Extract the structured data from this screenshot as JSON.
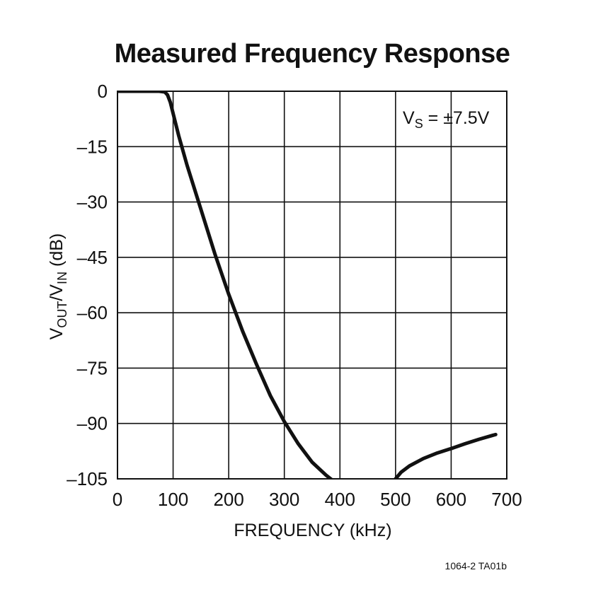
{
  "chart_data": {
    "type": "line",
    "title": "Measured Frequency Response",
    "xlabel": "FREQUENCY (kHz)",
    "ylabel": {
      "main": "V",
      "sub1": "OUT",
      "mid": "/V",
      "sub2": "IN",
      "tail": " (dB)"
    },
    "annotation": {
      "main": "V",
      "sub": "S",
      "tail": " = ±7.5V"
    },
    "footer": "1064-2 TA01b",
    "xlim": [
      0,
      700
    ],
    "ylim": [
      -105,
      0
    ],
    "grid": true,
    "x_ticks": [
      0,
      100,
      200,
      300,
      400,
      500,
      600,
      700
    ],
    "x_tick_labels": [
      "0",
      "100",
      "200",
      "300",
      "400",
      "500",
      "600",
      "700"
    ],
    "y_ticks": [
      0,
      -15,
      -30,
      -45,
      -60,
      -75,
      -90,
      -105
    ],
    "y_tick_labels": [
      "0",
      "–15",
      "–30",
      "–45",
      "–60",
      "–75",
      "–90",
      "–105"
    ],
    "colors": {
      "line": "#111111",
      "grid": "#111111",
      "background": "#ffffff"
    },
    "series": [
      {
        "segments": [
          {
            "x": [
              0,
              20,
              40,
              60,
              75,
              85,
              90,
              95,
              100,
              110,
              125,
              150,
              175,
              200,
              225,
              250,
              275,
              300,
              325,
              350,
              375,
              400,
              425,
              450,
              455
            ],
            "y": [
              0,
              0,
              0,
              0,
              0,
              -0.2,
              -1.0,
              -3.0,
              -6.0,
              -12.0,
              -20.0,
              -32.0,
              -44.0,
              -55.0,
              -65.0,
              -74.0,
              -82.5,
              -89.5,
              -95.5,
              -100.5,
              -104.0,
              -107.0,
              -110.0,
              -113.0,
              -115.0
            ]
          },
          {
            "x": [
              500,
              510,
              525,
              550,
              575,
              600,
              625,
              650,
              675,
              680
            ],
            "y": [
              -105.0,
              -103.2,
              -101.5,
              -99.5,
              -98.0,
              -96.8,
              -95.5,
              -94.3,
              -93.2,
              -93.0
            ]
          }
        ]
      }
    ]
  }
}
